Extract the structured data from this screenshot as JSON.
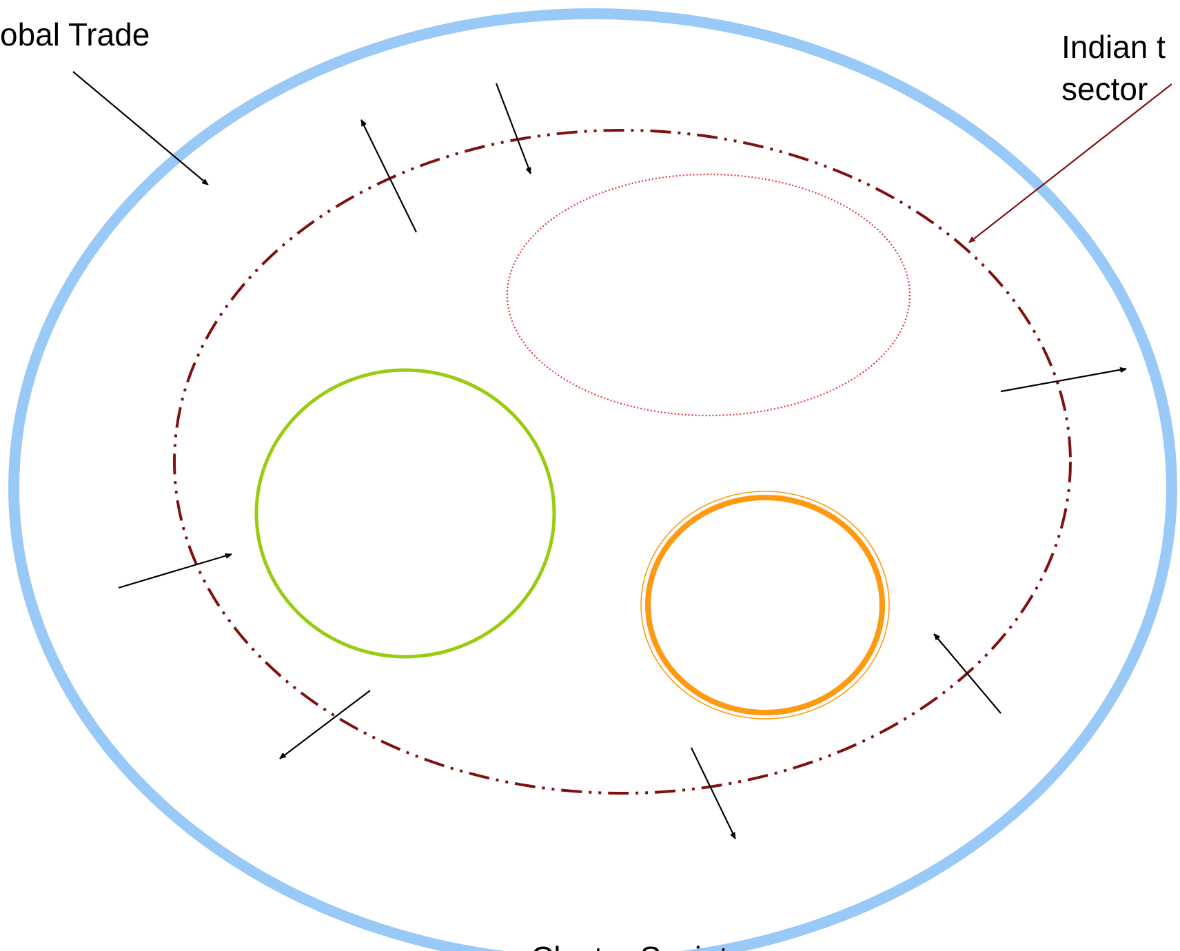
{
  "labels": {
    "global_trade": "obal Trade",
    "indian_trade_line1": "Indian t",
    "indian_trade_line2": "sector",
    "cluster_society": "Cluster Society"
  },
  "colors": {
    "global_ring": "#99c9f7",
    "indian_boundary": "#7f1010",
    "dotted_ellipse": "#e8303a",
    "green_circle": "#99cc11",
    "orange_circle": "#ff9911",
    "arrow": "#000000",
    "indian_pointer": "#7f1010"
  }
}
